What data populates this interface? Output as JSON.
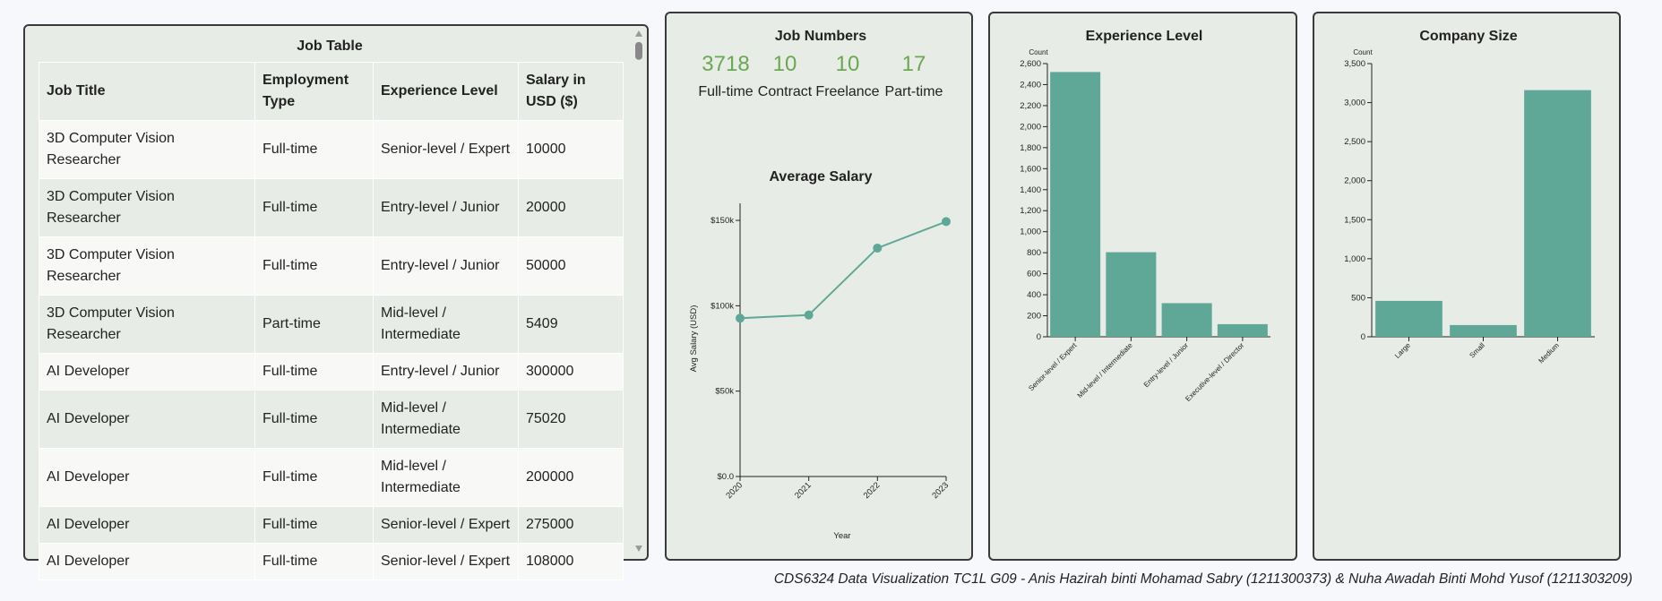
{
  "table": {
    "title": "Job Table",
    "columns": [
      "Job Title",
      "Employment Type",
      "Experience Level",
      "Salary in USD ($)"
    ],
    "rows": [
      [
        "3D Computer Vision Researcher",
        "Full-time",
        "Senior-level / Expert",
        10000
      ],
      [
        "3D Computer Vision Researcher",
        "Full-time",
        "Entry-level / Junior",
        20000
      ],
      [
        "3D Computer Vision Researcher",
        "Full-time",
        "Entry-level / Junior",
        50000
      ],
      [
        "3D Computer Vision Researcher",
        "Part-time",
        "Mid-level / Intermediate",
        5409
      ],
      [
        "AI Developer",
        "Full-time",
        "Entry-level / Junior",
        300000
      ],
      [
        "AI Developer",
        "Full-time",
        "Mid-level / Intermediate",
        75020
      ],
      [
        "AI Developer",
        "Full-time",
        "Mid-level / Intermediate",
        200000
      ],
      [
        "AI Developer",
        "Full-time",
        "Senior-level / Expert",
        275000
      ],
      [
        "AI Developer",
        "Full-time",
        "Senior-level / Expert",
        108000
      ]
    ]
  },
  "job_numbers": {
    "title": "Job Numbers",
    "items": [
      {
        "value": 3718,
        "label": "Full-time"
      },
      {
        "value": 10,
        "label": "Contract"
      },
      {
        "value": 10,
        "label": "Freelance"
      },
      {
        "value": 17,
        "label": "Part-time"
      }
    ]
  },
  "chart_data": [
    {
      "type": "line",
      "title": "Average Salary",
      "x_label": "Year",
      "y_label": "Avg Salary (USD)",
      "categories": [
        "2020",
        "2021",
        "2022",
        "2023"
      ],
      "values": [
        92700,
        94600,
        133800,
        149300
      ],
      "color": "#5fa898",
      "ylim": [
        0,
        160000
      ],
      "yticks": [
        {
          "value": 0,
          "label": "$0.0"
        },
        {
          "value": 50000,
          "label": "$50k"
        },
        {
          "value": 100000,
          "label": "$100k"
        },
        {
          "value": 150000,
          "label": "$150k"
        }
      ]
    },
    {
      "type": "bar",
      "title": "Experience Level",
      "y_label": "Count",
      "categories": [
        "Senior-level / Expert",
        "Mid-level / Intermediate",
        "Entry-level / Junior",
        "Executive-level / Director"
      ],
      "values": [
        2520,
        805,
        320,
        120
      ],
      "color": "#5fa898",
      "ylim": [
        0,
        2600
      ],
      "yticks": [
        0,
        200,
        400,
        600,
        800,
        {
          "value": 1000,
          "label": "1,000"
        },
        {
          "value": 1200,
          "label": "1,200"
        },
        {
          "value": 1400,
          "label": "1,400"
        },
        {
          "value": 1600,
          "label": "1,600"
        },
        {
          "value": 1800,
          "label": "1,800"
        },
        {
          "value": 2000,
          "label": "2,000"
        },
        {
          "value": 2200,
          "label": "2,200"
        },
        {
          "value": 2400,
          "label": "2,400"
        },
        {
          "value": 2600,
          "label": "2,600"
        }
      ]
    },
    {
      "type": "bar",
      "title": "Company Size",
      "y_label": "Count",
      "categories": [
        "Large",
        "Small",
        "Medium"
      ],
      "values": [
        460,
        150,
        3160
      ],
      "color": "#5fa898",
      "ylim": [
        0,
        3500
      ],
      "yticks": [
        0,
        500,
        {
          "value": 1000,
          "label": "1,000"
        },
        {
          "value": 1500,
          "label": "1,500"
        },
        {
          "value": 2000,
          "label": "2,000"
        },
        {
          "value": 2500,
          "label": "2,500"
        },
        {
          "value": 3000,
          "label": "3,000"
        },
        {
          "value": 3500,
          "label": "3,500"
        }
      ]
    }
  ],
  "footer": "CDS6324 Data Visualization TC1L G09 - Anis Hazirah binti Mohamad Sabry (1211300373) & Nuha Awadah Binti Mohd Yusof (1211303209)"
}
